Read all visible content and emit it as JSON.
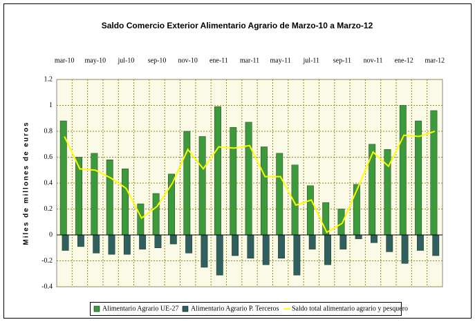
{
  "chart_data": {
    "type": "bar",
    "title": "Saldo Comercio Exterior Alimentario Agrario de Marzo-10 a Marzo-12",
    "y_label": "Miles de millones de euros",
    "categories": [
      "mar-10",
      null,
      "may-10",
      null,
      "jul-10",
      null,
      "sep-10",
      null,
      "nov-10",
      null,
      "ene-11",
      null,
      "mar-11",
      null,
      "may-11",
      null,
      "jul-11",
      null,
      "sep-11",
      null,
      "nov-11",
      null,
      "ene-12",
      null,
      "mar-12"
    ],
    "series": [
      {
        "name": "Alimentario Agrario UE-27",
        "type": "bar",
        "color": "#3c9a3c",
        "values": [
          0.88,
          0.6,
          0.63,
          0.58,
          0.51,
          0.24,
          0.32,
          0.47,
          0.8,
          0.76,
          0.99,
          0.83,
          0.87,
          0.68,
          0.63,
          0.54,
          0.38,
          0.25,
          0.2,
          0.39,
          0.7,
          0.66,
          1.0,
          0.88,
          0.96
        ]
      },
      {
        "name": "Alimentario Agrario P. Terceros",
        "type": "bar",
        "color": "#2f5f5f",
        "values": [
          -0.12,
          -0.09,
          -0.14,
          -0.15,
          -0.15,
          -0.11,
          -0.1,
          -0.07,
          -0.14,
          -0.25,
          -0.31,
          -0.16,
          -0.18,
          -0.23,
          -0.18,
          -0.31,
          -0.11,
          -0.23,
          -0.11,
          -0.03,
          -0.06,
          -0.13,
          -0.22,
          -0.12,
          -0.16
        ]
      },
      {
        "name": "Saldo total alimentario agrario y pesquero",
        "type": "line",
        "color": "#ffff00",
        "values": [
          0.76,
          0.51,
          0.5,
          0.44,
          0.36,
          0.13,
          0.22,
          0.4,
          0.66,
          0.51,
          0.68,
          0.67,
          0.69,
          0.45,
          0.45,
          0.23,
          0.27,
          0.02,
          0.09,
          0.36,
          0.64,
          0.53,
          0.77,
          0.76,
          0.8
        ]
      }
    ],
    "ylim": [
      -0.4,
      1.2
    ],
    "yticks": [
      -0.4,
      -0.2,
      0,
      0.2,
      0.4,
      0.6,
      0.8,
      1,
      1.2
    ],
    "grid": true,
    "legend": "bottom"
  }
}
